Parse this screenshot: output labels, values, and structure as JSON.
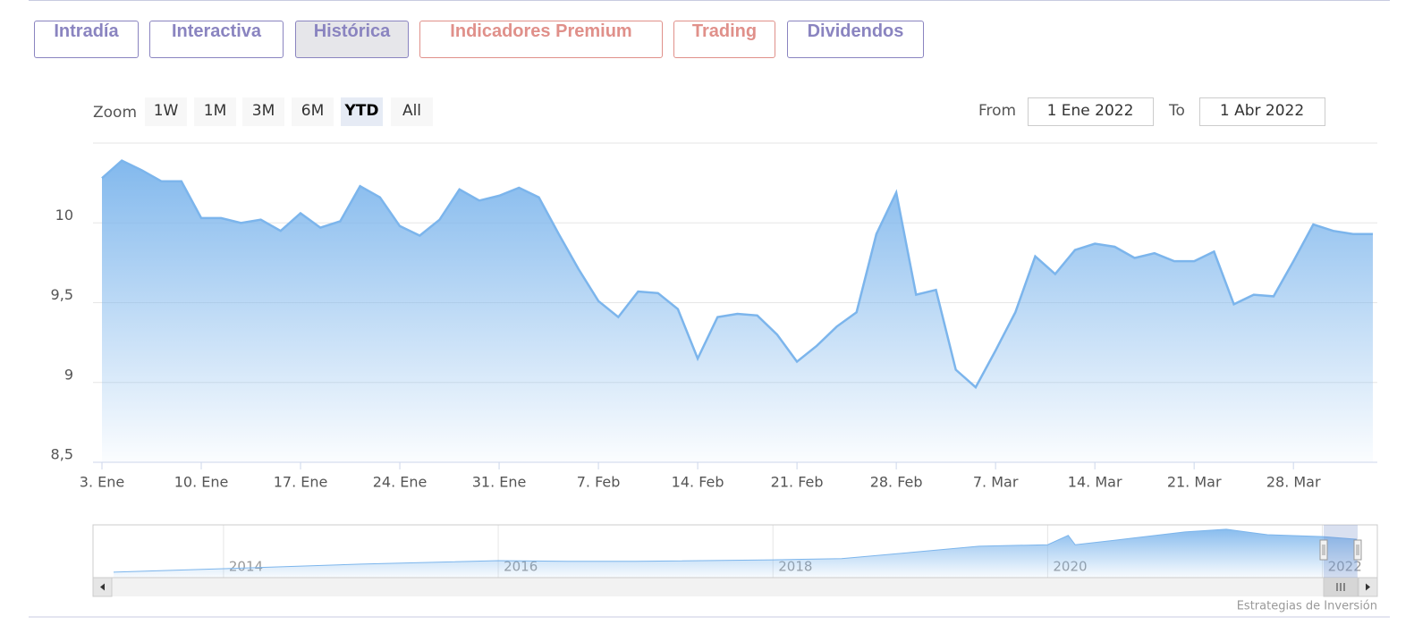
{
  "tabs": [
    "Intradía",
    "Interactiva",
    "Histórica",
    "Indicadores Premium",
    "Trading",
    "Dividendos"
  ],
  "zoom": {
    "label": "Zoom",
    "buttons": [
      "1W",
      "1M",
      "3M",
      "6M",
      "YTD",
      "All"
    ]
  },
  "range": {
    "from_label": "From",
    "from": "1 Ene 2022",
    "to_label": "To",
    "to": "1 Abr 2022"
  },
  "credit": "Estrategias de Inversión",
  "chart_data": {
    "type": "area",
    "color": "#7cb5ec",
    "categories": [
      "3. Ene",
      null,
      null,
      null,
      null,
      "10. Ene",
      null,
      null,
      null,
      null,
      "17. Ene",
      null,
      null,
      null,
      null,
      "24. Ene",
      null,
      null,
      null,
      null,
      "31. Ene",
      null,
      null,
      null,
      null,
      "7. Feb",
      null,
      null,
      null,
      null,
      "14. Feb",
      null,
      null,
      null,
      null,
      "21. Feb",
      null,
      null,
      null,
      null,
      "28. Feb",
      null,
      null,
      null,
      null,
      "7. Mar",
      null,
      null,
      null,
      null,
      "14. Mar",
      null,
      null,
      null,
      null,
      "21. Mar",
      null,
      null,
      null,
      null,
      "28. Mar",
      null,
      null,
      null,
      null
    ],
    "values": [
      10.28,
      10.39,
      10.33,
      10.26,
      10.26,
      10.03,
      10.03,
      10.0,
      10.02,
      9.95,
      10.06,
      9.97,
      10.01,
      10.23,
      10.16,
      9.98,
      9.92,
      10.02,
      10.21,
      10.14,
      10.17,
      10.22,
      10.16,
      9.93,
      9.71,
      9.51,
      9.41,
      9.57,
      9.56,
      9.46,
      9.15,
      9.41,
      9.43,
      9.42,
      9.3,
      9.13,
      9.23,
      9.35,
      9.44,
      9.93,
      10.19,
      9.55,
      9.58,
      9.08,
      8.97,
      9.2,
      9.44,
      9.79,
      9.68,
      9.83,
      9.87,
      9.85,
      9.78,
      9.81,
      9.76,
      9.76,
      9.82,
      9.49,
      9.55,
      9.54,
      9.76,
      9.99,
      9.95,
      9.93,
      9.93
    ],
    "ylim": [
      8.5,
      10.5
    ],
    "yticks": [
      {
        "value": 8.5,
        "label": "8,5"
      },
      9,
      {
        "value": 9.5,
        "label": "9,5"
      },
      10
    ],
    "grid": true
  },
  "navigator": {
    "color": "#7cb5ec",
    "x": [
      2013.2,
      2014,
      2015,
      2016,
      2016.5,
      2017,
      2018,
      2018.5,
      2019,
      2019.5,
      2020,
      2020.15,
      2020.2,
      2020.5,
      2021,
      2021.3,
      2021.6,
      2022,
      2022.25
    ],
    "values": [
      1.4,
      2.3,
      3.5,
      4.4,
      4.2,
      4.2,
      4.6,
      4.9,
      6.5,
      8.1,
      8.5,
      10.9,
      8.5,
      9.7,
      11.8,
      12.5,
      11.1,
      10.6,
      9.9
    ],
    "xlim": [
      2013.05,
      2022.4
    ],
    "ylim": [
      0,
      13.4
    ],
    "xticks": [
      2014,
      2016,
      2018,
      2020,
      2022
    ]
  }
}
